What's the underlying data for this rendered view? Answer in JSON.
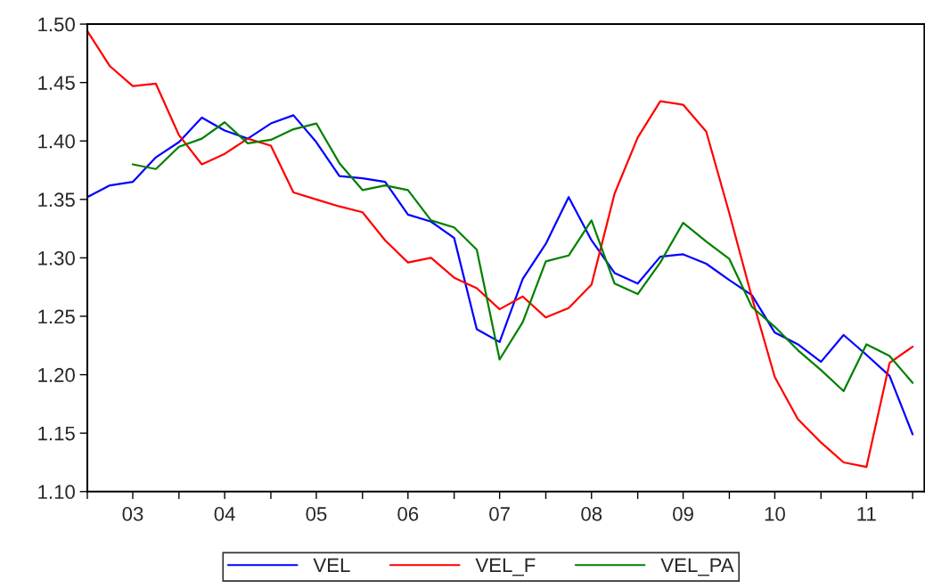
{
  "chart_data": {
    "type": "line",
    "x": [
      "2003-01",
      "2003-04",
      "2003-07",
      "2003-10",
      "2004-01",
      "2004-04",
      "2004-07",
      "2004-10",
      "2005-01",
      "2005-04",
      "2005-07",
      "2005-10",
      "2006-01",
      "2006-04",
      "2006-07",
      "2006-10",
      "2007-01",
      "2007-04",
      "2007-07",
      "2007-10",
      "2008-01",
      "2008-04",
      "2008-07",
      "2008-10",
      "2009-01",
      "2009-04",
      "2009-07",
      "2009-10",
      "2010-01",
      "2010-04",
      "2010-07",
      "2010-10",
      "2011-01",
      "2011-04",
      "2011-07",
      "2011-10",
      "2012-01"
    ],
    "series": [
      {
        "name": "VEL",
        "color": "#0000ff",
        "values": [
          1.352,
          1.362,
          1.365,
          1.386,
          1.399,
          1.42,
          1.409,
          1.402,
          1.415,
          1.422,
          1.399,
          1.37,
          1.368,
          1.365,
          1.337,
          1.331,
          1.317,
          1.239,
          1.228,
          1.282,
          1.312,
          1.352,
          1.315,
          1.287,
          1.278,
          1.301,
          1.303,
          1.295,
          1.281,
          1.268,
          1.236,
          1.226,
          1.211,
          1.234,
          1.217,
          1.199,
          1.149
        ]
      },
      {
        "name": "VEL_F",
        "color": "#ff0000",
        "values": [
          1.494,
          1.464,
          1.447,
          1.449,
          1.405,
          1.38,
          1.389,
          1.402,
          1.396,
          1.356,
          1.35,
          1.344,
          1.339,
          1.315,
          1.296,
          1.3,
          1.283,
          1.274,
          1.256,
          1.267,
          1.249,
          1.257,
          1.277,
          1.355,
          1.403,
          1.434,
          1.431,
          1.408,
          1.338,
          1.266,
          1.198,
          1.162,
          1.142,
          1.125,
          1.121,
          1.21,
          1.224
        ]
      },
      {
        "name": "VEL_PA",
        "color": "#008000",
        "values": [
          null,
          null,
          1.38,
          1.376,
          1.395,
          1.402,
          1.416,
          1.398,
          1.401,
          1.41,
          1.415,
          1.381,
          1.358,
          1.362,
          1.358,
          1.332,
          1.326,
          1.307,
          1.213,
          1.245,
          1.297,
          1.302,
          1.332,
          1.278,
          1.269,
          1.296,
          1.33,
          1.314,
          1.299,
          1.258,
          1.241,
          1.221,
          1.204,
          1.186,
          1.226,
          1.216,
          1.193
        ]
      }
    ],
    "xlim": [
      "2003-01-01",
      "2012-02-17"
    ],
    "xticks": [
      {
        "value": "2003-01-01",
        "label": null
      },
      {
        "value": "2003-07-01",
        "label": "03"
      },
      {
        "value": "2004-01-01",
        "label": null
      },
      {
        "value": "2004-07-01",
        "label": "04"
      },
      {
        "value": "2005-01-01",
        "label": null
      },
      {
        "value": "2005-07-01",
        "label": "05"
      },
      {
        "value": "2006-01-01",
        "label": null
      },
      {
        "value": "2006-07-01",
        "label": "06"
      },
      {
        "value": "2007-01-01",
        "label": null
      },
      {
        "value": "2007-07-01",
        "label": "07"
      },
      {
        "value": "2008-01-01",
        "label": null
      },
      {
        "value": "2008-07-01",
        "label": "08"
      },
      {
        "value": "2009-01-01",
        "label": null
      },
      {
        "value": "2009-07-01",
        "label": "09"
      },
      {
        "value": "2010-01-01",
        "label": null
      },
      {
        "value": "2010-07-01",
        "label": "10"
      },
      {
        "value": "2011-01-01",
        "label": null
      },
      {
        "value": "2011-07-01",
        "label": "11"
      },
      {
        "value": "2012-01-01",
        "label": null
      }
    ],
    "ylim": [
      1.1,
      1.5
    ],
    "yticks": [
      {
        "value": 1.1,
        "label": "1.10"
      },
      {
        "value": 1.15,
        "label": "1.15"
      },
      {
        "value": 1.2,
        "label": "1.20"
      },
      {
        "value": 1.25,
        "label": "1.25"
      },
      {
        "value": 1.3,
        "label": "1.30"
      },
      {
        "value": 1.35,
        "label": "1.35"
      },
      {
        "value": 1.4,
        "label": "1.40"
      },
      {
        "value": 1.45,
        "label": "1.45"
      },
      {
        "value": 1.5,
        "label": "1.50"
      }
    ],
    "grid": false,
    "legend": "bottom",
    "line_style": "solid",
    "marker": "none"
  }
}
